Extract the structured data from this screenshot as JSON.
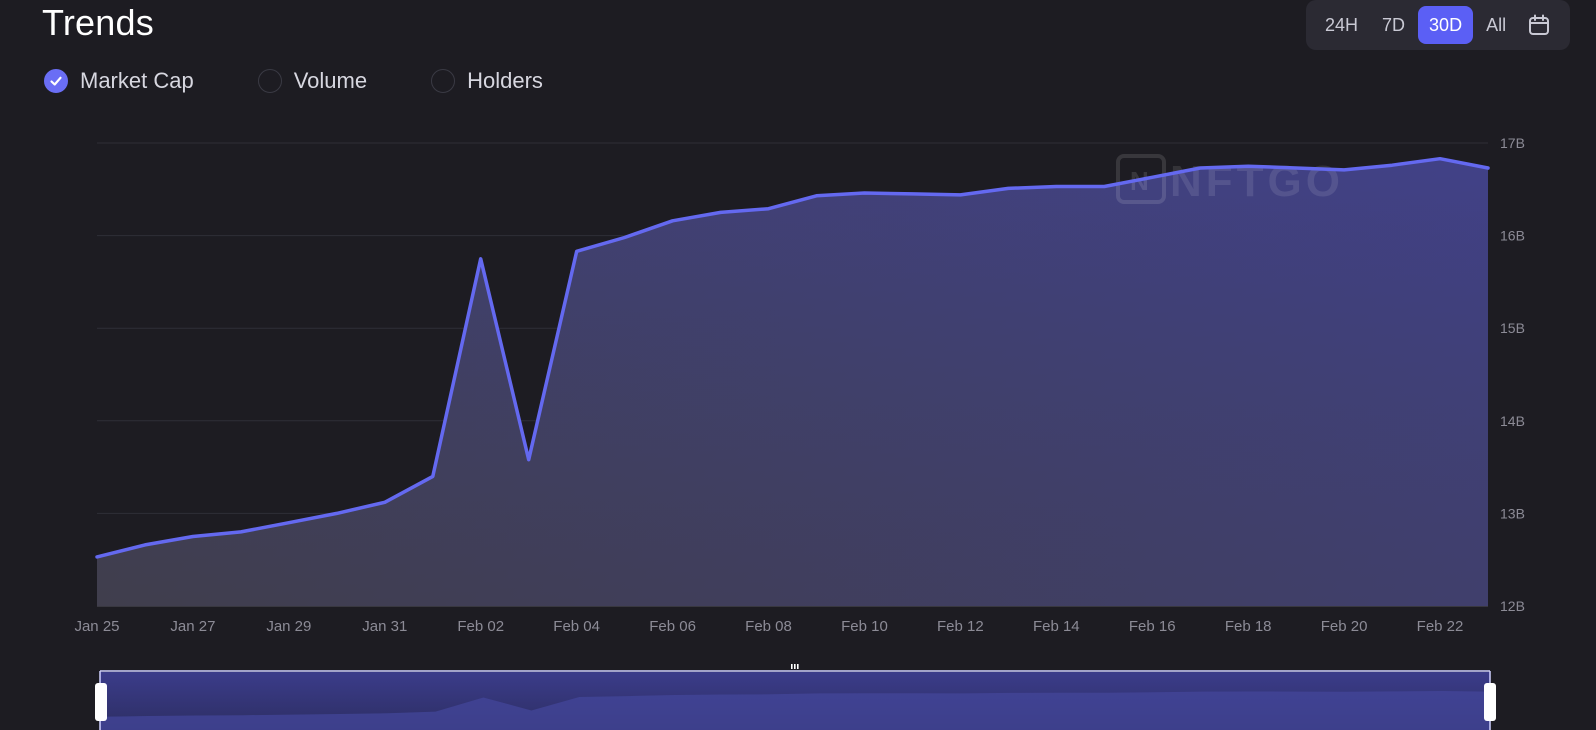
{
  "header": {
    "title": "Trends"
  },
  "range": {
    "options": [
      "24H",
      "7D",
      "30D",
      "All"
    ],
    "selected": "30D"
  },
  "metrics": [
    {
      "label": "Market Cap",
      "checked": true
    },
    {
      "label": "Volume",
      "checked": false
    },
    {
      "label": "Holders",
      "checked": false
    }
  ],
  "watermark": "NFTGO",
  "colors": {
    "accent": "#5b5ff5",
    "line": "#6469f0",
    "background": "#1d1c22"
  },
  "chart_data": {
    "type": "area",
    "title": "",
    "xlabel": "",
    "ylabel": "",
    "ylim": [
      12,
      17
    ],
    "y_unit": "B",
    "yticks": [
      "12B",
      "13B",
      "14B",
      "15B",
      "16B",
      "17B"
    ],
    "xticks": [
      "Jan 25",
      "Jan 27",
      "Jan 29",
      "Jan 31",
      "Feb 02",
      "Feb 04",
      "Feb 06",
      "Feb 08",
      "Feb 10",
      "Feb 12",
      "Feb 14",
      "Feb 16",
      "Feb 18",
      "Feb 20",
      "Feb 22"
    ],
    "grid": true,
    "legend": "none",
    "series": [
      {
        "name": "Market Cap",
        "x": [
          "Jan 25",
          "Jan 26",
          "Jan 27",
          "Jan 28",
          "Jan 29",
          "Jan 30",
          "Jan 31",
          "Feb 01",
          "Feb 02",
          "Feb 03",
          "Feb 04",
          "Feb 05",
          "Feb 06",
          "Feb 07",
          "Feb 08",
          "Feb 09",
          "Feb 10",
          "Feb 11",
          "Feb 12",
          "Feb 13",
          "Feb 14",
          "Feb 15",
          "Feb 16",
          "Feb 17",
          "Feb 18",
          "Feb 19",
          "Feb 20",
          "Feb 21",
          "Feb 22",
          "Feb 23"
        ],
        "values": [
          12.53,
          12.66,
          12.75,
          12.8,
          12.9,
          13.0,
          13.12,
          13.4,
          15.75,
          13.58,
          15.83,
          15.98,
          16.16,
          16.25,
          16.29,
          16.43,
          16.46,
          16.45,
          16.44,
          16.51,
          16.53,
          16.53,
          16.63,
          16.73,
          16.75,
          16.73,
          16.71,
          16.76,
          16.83,
          16.73
        ]
      }
    ]
  }
}
